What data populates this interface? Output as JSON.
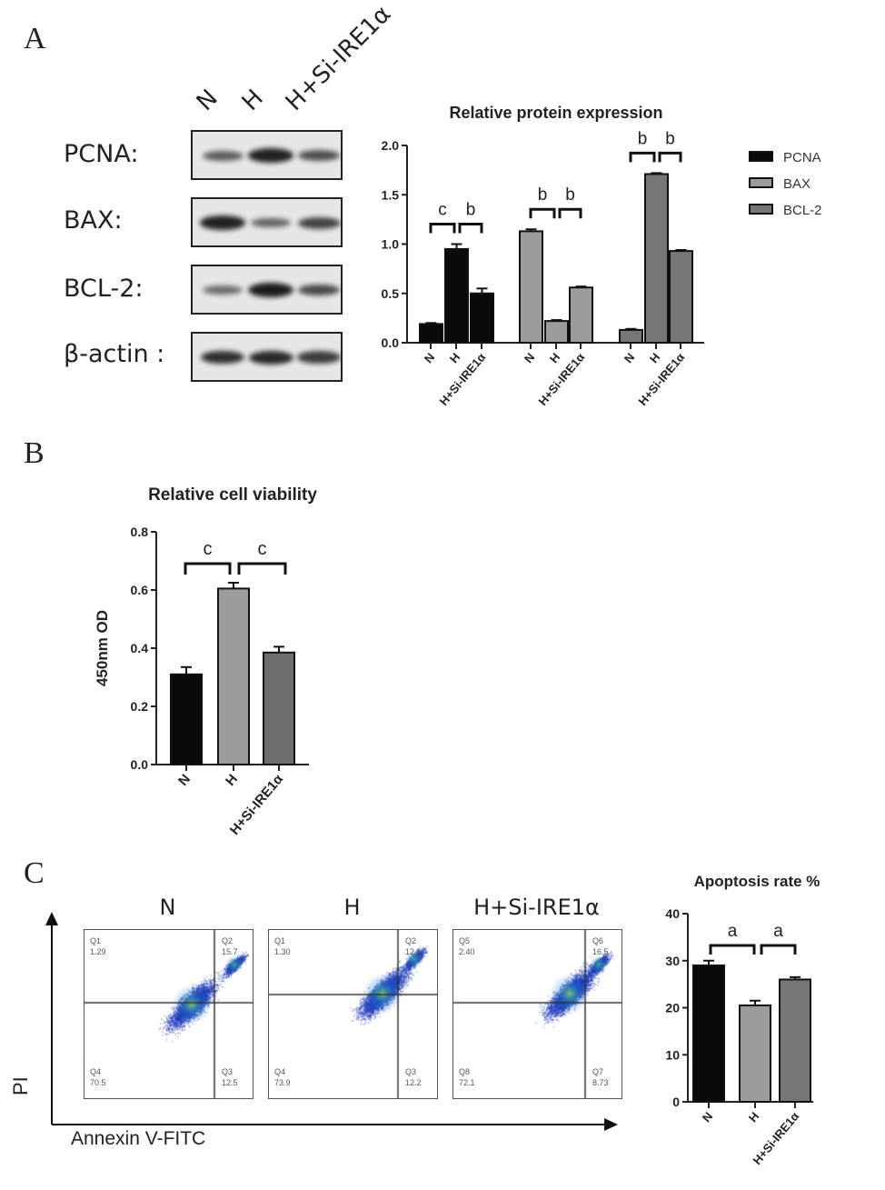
{
  "panels": {
    "a": "A",
    "b": "B",
    "c": "C"
  },
  "blot": {
    "lanes": [
      "N",
      "H",
      "H+Si-IRE1α"
    ],
    "rows": [
      {
        "label": "PCNA:",
        "intensity": [
          0.5,
          0.95,
          0.6
        ]
      },
      {
        "label": "BAX:",
        "intensity": [
          0.95,
          0.45,
          0.7
        ]
      },
      {
        "label": "BCL-2:",
        "intensity": [
          0.4,
          1.0,
          0.65
        ]
      },
      {
        "label": "β-actin :",
        "intensity": [
          0.85,
          0.9,
          0.75
        ]
      }
    ]
  },
  "chart_data": [
    {
      "type": "bar",
      "title": "Relative protein expression",
      "ylabel": "",
      "ylim": [
        0,
        2.0
      ],
      "yticks": [
        "0.0",
        "0.5",
        "1.0",
        "1.5",
        "2.0"
      ],
      "categories": [
        "N",
        "H",
        "H+Si-IRE1α"
      ],
      "legend_position": "right",
      "series": [
        {
          "name": "PCNA",
          "color": "#0a0a0a",
          "values": [
            0.19,
            0.95,
            0.5
          ],
          "errors": [
            0.01,
            0.05,
            0.05
          ],
          "sig": [
            "c",
            "b"
          ]
        },
        {
          "name": "BAX",
          "color": "#9c9c9c",
          "values": [
            1.13,
            0.22,
            0.56
          ],
          "errors": [
            0.02,
            0.01,
            0.01
          ],
          "sig": [
            "b",
            "b"
          ]
        },
        {
          "name": "BCL-2",
          "color": "#767676",
          "values": [
            0.13,
            1.71,
            0.93
          ],
          "errors": [
            0.01,
            0.01,
            0.01
          ],
          "sig": [
            "b",
            "b"
          ]
        }
      ]
    },
    {
      "type": "bar",
      "title": "Relative cell viability",
      "ylabel": "450nm OD",
      "ylim": [
        0,
        0.8
      ],
      "yticks": [
        "0.0",
        "0.2",
        "0.4",
        "0.6",
        "0.8"
      ],
      "categories": [
        "N",
        "H",
        "H+Si-IRE1α"
      ],
      "values": [
        0.31,
        0.605,
        0.385
      ],
      "errors": [
        0.025,
        0.02,
        0.02
      ],
      "colors": [
        "#0a0a0a",
        "#9c9c9c",
        "#6e6e6e"
      ],
      "sig": [
        "c",
        "c"
      ]
    },
    {
      "type": "bar",
      "title": "Apoptosis rate %",
      "ylabel": "",
      "ylim": [
        0,
        40
      ],
      "yticks": [
        "0",
        "10",
        "20",
        "30",
        "40"
      ],
      "categories": [
        "N",
        "H",
        "H+Si-IRE1α"
      ],
      "values": [
        29,
        20.5,
        26
      ],
      "errors": [
        1,
        1,
        0.5
      ],
      "colors": [
        "#0a0a0a",
        "#9c9c9c",
        "#767676"
      ],
      "sig": [
        "a",
        "a"
      ]
    }
  ],
  "flow": {
    "xaxis": "Annexin V-FITC",
    "yaxis": "PI",
    "plots": [
      {
        "title": "N",
        "q": [
          [
            "Q1",
            "1.29"
          ],
          [
            "Q2",
            "15.7"
          ],
          [
            "Q4",
            "70.5"
          ],
          [
            "Q3",
            "12.5"
          ]
        ]
      },
      {
        "title": "H",
        "q": [
          [
            "Q1",
            "1.30"
          ],
          [
            "Q2",
            "12.5"
          ],
          [
            "Q4",
            "73.9"
          ],
          [
            "Q3",
            "12.2"
          ]
        ]
      },
      {
        "title": "H+Si-IRE1α",
        "q": [
          [
            "Q5",
            "2.40"
          ],
          [
            "Q6",
            "16.5"
          ],
          [
            "Q8",
            "72.1"
          ],
          [
            "Q7",
            "8.73"
          ]
        ]
      }
    ]
  }
}
